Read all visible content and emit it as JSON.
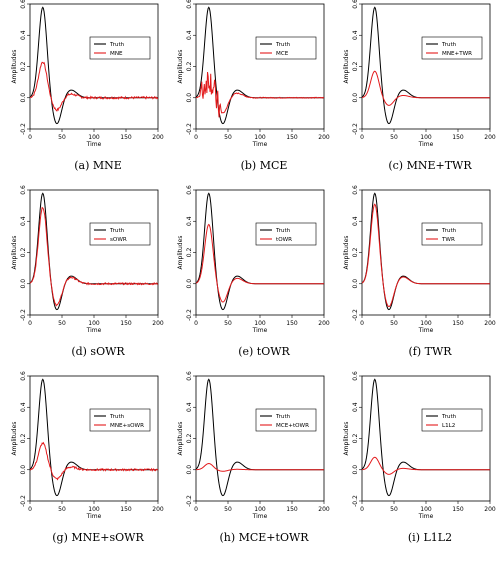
{
  "chart_data": [
    {
      "type": "line",
      "caption": "(a) MNE",
      "ylabel": "Amplitudes",
      "xlabel": "Time",
      "ylim": [
        -0.2,
        0.6
      ],
      "xlim": [
        0,
        200
      ],
      "xticks": [
        "0",
        "50",
        "100",
        "150",
        "200"
      ],
      "yticks": [
        "-0.2",
        "0.0",
        "0.2",
        "0.4",
        "0.6"
      ],
      "legend": "top-right",
      "truth_label": "Truth",
      "estimate_label": "MNE",
      "colors": {
        "truth": "#000000",
        "estimate": "#e31a1c"
      },
      "estimate_peak": 0.23,
      "estimate_trough": -0.08,
      "noise": 0.007,
      "spikes": 0
    },
    {
      "type": "line",
      "caption": "(b) MCE",
      "ylabel": "Amplitudes",
      "xlabel": "Time",
      "ylim": [
        -0.2,
        0.6
      ],
      "xlim": [
        0,
        200
      ],
      "xticks": [
        "0",
        "50",
        "100",
        "150",
        "200"
      ],
      "yticks": [
        "-0.2",
        "0.0",
        "0.2",
        "0.4",
        "0.6"
      ],
      "legend": "top-right",
      "truth_label": "Truth",
      "estimate_label": "MCE",
      "colors": {
        "truth": "#000000",
        "estimate": "#e31a1c"
      },
      "estimate_peak": 0.13,
      "estimate_trough": -0.1,
      "noise": 0.003,
      "spikes": 1
    },
    {
      "type": "line",
      "caption": "(c) MNE+TWR",
      "ylabel": "Amplitudes",
      "xlabel": "Time",
      "ylim": [
        -0.2,
        0.6
      ],
      "xlim": [
        0,
        200
      ],
      "xticks": [
        "0",
        "50",
        "100",
        "150",
        "200"
      ],
      "yticks": [
        "-0.2",
        "0.0",
        "0.2",
        "0.4",
        "0.6"
      ],
      "legend": "top-right",
      "truth_label": "Truth",
      "estimate_label": "MNE+TWR",
      "colors": {
        "truth": "#000000",
        "estimate": "#e31a1c"
      },
      "estimate_peak": 0.17,
      "estimate_trough": -0.05,
      "noise": 0,
      "spikes": 0
    },
    {
      "type": "line",
      "caption": "(d) sOWR",
      "ylabel": "Amplitudes",
      "xlabel": "Time",
      "ylim": [
        -0.2,
        0.6
      ],
      "xlim": [
        0,
        200
      ],
      "xticks": [
        "0",
        "50",
        "100",
        "150",
        "200"
      ],
      "yticks": [
        "-0.2",
        "0.0",
        "0.2",
        "0.4",
        "0.6"
      ],
      "legend": "top-right",
      "truth_label": "Truth",
      "estimate_label": "sOWR",
      "colors": {
        "truth": "#000000",
        "estimate": "#e31a1c"
      },
      "estimate_peak": 0.49,
      "estimate_trough": -0.14,
      "noise": 0.006,
      "spikes": 0
    },
    {
      "type": "line",
      "caption": "(e) tOWR",
      "ylabel": "Amplitudes",
      "xlabel": "Time",
      "ylim": [
        -0.2,
        0.6
      ],
      "xlim": [
        0,
        200
      ],
      "xticks": [
        "0",
        "50",
        "100",
        "150",
        "200"
      ],
      "yticks": [
        "-0.2",
        "0.0",
        "0.2",
        "0.4",
        "0.6"
      ],
      "legend": "top-right",
      "truth_label": "Truth",
      "estimate_label": "tOWR",
      "colors": {
        "truth": "#000000",
        "estimate": "#e31a1c"
      },
      "estimate_peak": 0.38,
      "estimate_trough": -0.12,
      "noise": 0,
      "spikes": 0
    },
    {
      "type": "line",
      "caption": "(f) TWR",
      "ylabel": "Amplitudes",
      "xlabel": "Time",
      "ylim": [
        -0.2,
        0.6
      ],
      "xlim": [
        0,
        200
      ],
      "xticks": [
        "0",
        "50",
        "100",
        "150",
        "200"
      ],
      "yticks": [
        "-0.2",
        "0.0",
        "0.2",
        "0.4",
        "0.6"
      ],
      "legend": "top-right",
      "truth_label": "Truth",
      "estimate_label": "TWR",
      "colors": {
        "truth": "#000000",
        "estimate": "#e31a1c"
      },
      "estimate_peak": 0.51,
      "estimate_trough": -0.15,
      "noise": 0,
      "spikes": 0
    },
    {
      "type": "line",
      "caption": "(g) MNE+sOWR",
      "ylabel": "Amplitudes",
      "xlabel": "Time",
      "ylim": [
        -0.2,
        0.6
      ],
      "xlim": [
        0,
        200
      ],
      "xticks": [
        "0",
        "50",
        "100",
        "150",
        "200"
      ],
      "yticks": [
        "-0.2",
        "0.0",
        "0.2",
        "0.4",
        "0.6"
      ],
      "legend": "top-right",
      "truth_label": "Truth",
      "estimate_label": "MNE+sOWR",
      "colors": {
        "truth": "#000000",
        "estimate": "#e31a1c"
      },
      "estimate_peak": 0.17,
      "estimate_trough": -0.06,
      "noise": 0.006,
      "spikes": 0
    },
    {
      "type": "line",
      "caption": "(h) MCE+tOWR",
      "ylabel": "Amplitudes",
      "xlabel": "Time",
      "ylim": [
        -0.2,
        0.6
      ],
      "xlim": [
        0,
        200
      ],
      "xticks": [
        "0",
        "50",
        "100",
        "150",
        "200"
      ],
      "yticks": [
        "-0.2",
        "0.0",
        "0.2",
        "0.4",
        "0.6"
      ],
      "legend": "top-right",
      "truth_label": "Truth",
      "estimate_label": "MCE+tOWR",
      "colors": {
        "truth": "#000000",
        "estimate": "#e31a1c"
      },
      "estimate_peak": 0.04,
      "estimate_trough": -0.01,
      "noise": 0,
      "spikes": 0
    },
    {
      "type": "line",
      "caption": "(i) L1L2",
      "ylabel": "Amplitudes",
      "xlabel": "Time",
      "ylim": [
        -0.2,
        0.6
      ],
      "xlim": [
        0,
        200
      ],
      "xticks": [
        "0",
        "50",
        "100",
        "150",
        "200"
      ],
      "yticks": [
        "-0.2",
        "0.0",
        "0.2",
        "0.4",
        "0.6"
      ],
      "legend": "top-right",
      "truth_label": "Truth",
      "estimate_label": "L1L2",
      "colors": {
        "truth": "#000000",
        "estimate": "#e31a1c"
      },
      "estimate_peak": 0.08,
      "estimate_trough": -0.03,
      "noise": 0,
      "spikes": 0
    }
  ]
}
